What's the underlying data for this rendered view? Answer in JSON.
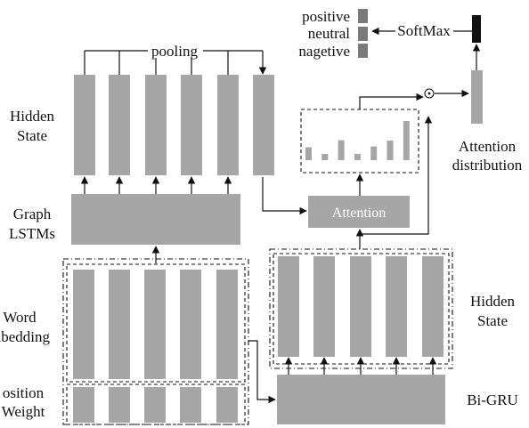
{
  "labels": {
    "hidden_state_left": [
      "Hidden",
      "State"
    ],
    "graph_lstms": [
      "Graph",
      "LSTMs"
    ],
    "word_embedding": [
      "Word",
      "mbedding"
    ],
    "position_weight": [
      "osition",
      "Weight"
    ],
    "pooling": "pooling",
    "attention": "Attention",
    "softmax": "SoftMax",
    "attention_distribution": [
      "Attention",
      "distribution"
    ],
    "hidden_state_right": [
      "Hidden",
      "State"
    ],
    "bi_gru": "Bi-GRU",
    "multiply_symbol": "⊙"
  },
  "legend": {
    "items": [
      "positive",
      "neutral",
      "nagetive"
    ]
  },
  "attention_bars": {
    "values": [
      0.33,
      0.16,
      0.51,
      0.16,
      0.35,
      0.5,
      1.0
    ]
  },
  "colors": {
    "block": "#a6a6a6",
    "softmax_output": "#111111",
    "legend_box": "#7a7a7a",
    "line": "#111111"
  }
}
